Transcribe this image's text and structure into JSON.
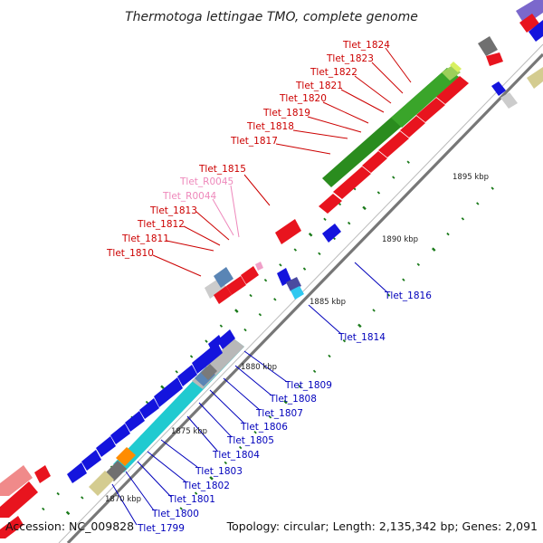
{
  "title": "Thermotoga lettingae TMO, complete genome",
  "accession": "Accession: NC_009828",
  "topology": "Topology: circular; Length: 2,135,342 bp; Genes: 2,091",
  "colors": {
    "forward_label": "#cc0000",
    "reverse_label": "#0000bb",
    "rna_label": "#ee88bb",
    "backbone": "#777777",
    "gc_dot": "#1a7a1a"
  },
  "ticks": [
    "1870 kbp",
    "1875 kbp",
    "1880 kbp",
    "1885 kbp",
    "1890 kbp",
    "1895 kbp"
  ],
  "forward_genes": [
    {
      "label": "Tlet_1824"
    },
    {
      "label": "Tlet_1823"
    },
    {
      "label": "Tlet_1822"
    },
    {
      "label": "Tlet_1821"
    },
    {
      "label": "Tlet_1820"
    },
    {
      "label": "Tlet_1819"
    },
    {
      "label": "Tlet_1818"
    },
    {
      "label": "Tlet_1817"
    },
    {
      "label": "Tlet_1815"
    },
    {
      "label": "Tlet_R0045"
    },
    {
      "label": "Tlet_R0044"
    },
    {
      "label": "Tlet_1813"
    },
    {
      "label": "Tlet_1812"
    },
    {
      "label": "Tlet_1811"
    },
    {
      "label": "Tlet_1810"
    }
  ],
  "reverse_genes": [
    {
      "label": "Tlet_1816"
    },
    {
      "label": "Tlet_1814"
    },
    {
      "label": "Tlet_1809"
    },
    {
      "label": "Tlet_1808"
    },
    {
      "label": "Tlet_1807"
    },
    {
      "label": "Tlet_1806"
    },
    {
      "label": "Tlet_1805"
    },
    {
      "label": "Tlet_1804"
    },
    {
      "label": "Tlet_1803"
    },
    {
      "label": "Tlet_1802"
    },
    {
      "label": "Tlet_1801"
    },
    {
      "label": "Tlet_1800"
    },
    {
      "label": "Tlet_1799"
    }
  ]
}
